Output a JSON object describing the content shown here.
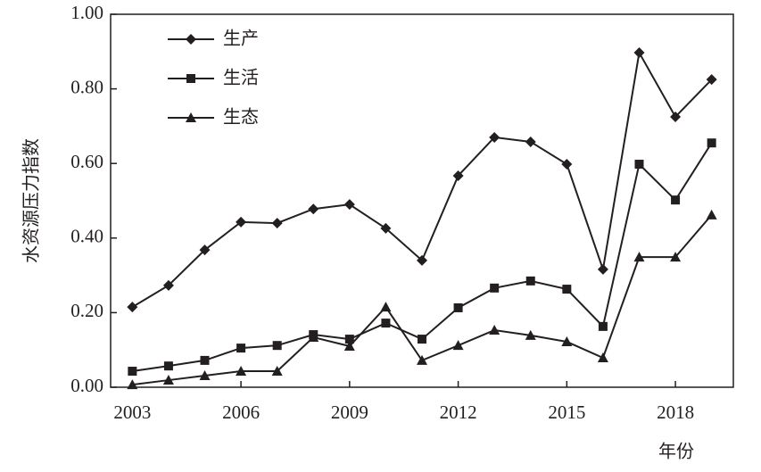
{
  "chart_data": {
    "type": "line",
    "ylabel": "水资源压力指数",
    "xlabel": "年份",
    "x": [
      2003,
      2004,
      2005,
      2006,
      2007,
      2008,
      2009,
      2010,
      2011,
      2012,
      2013,
      2014,
      2015,
      2016,
      2017,
      2018,
      2019
    ],
    "series": [
      {
        "name": "生产",
        "color": "#231f20",
        "marker": "diamond",
        "values": [
          0.215,
          0.273,
          0.368,
          0.443,
          0.44,
          0.478,
          0.49,
          0.426,
          0.34,
          0.567,
          0.67,
          0.658,
          0.598,
          0.316,
          0.897,
          0.725,
          0.825
        ]
      },
      {
        "name": "生活",
        "color": "#231f20",
        "marker": "square",
        "values": [
          0.043,
          0.057,
          0.072,
          0.105,
          0.112,
          0.141,
          0.129,
          0.172,
          0.129,
          0.213,
          0.266,
          0.285,
          0.263,
          0.163,
          0.598,
          0.502,
          0.655
        ]
      },
      {
        "name": "生态",
        "color": "#231f20",
        "marker": "triangle",
        "values": [
          0.007,
          0.019,
          0.031,
          0.043,
          0.043,
          0.134,
          0.11,
          0.215,
          0.072,
          0.112,
          0.153,
          0.139,
          0.122,
          0.079,
          0.349,
          0.349,
          0.462
        ]
      }
    ],
    "xlim": [
      2002.4,
      2019.6
    ],
    "xticks": [
      2003,
      2006,
      2009,
      2012,
      2015,
      2018
    ],
    "ylim": [
      0,
      1
    ],
    "yticks": [
      {
        "value": 0,
        "label": "0.00"
      },
      {
        "value": 0.2,
        "label": "0.20"
      },
      {
        "value": 0.4,
        "label": "0.40"
      },
      {
        "value": 0.6,
        "label": "0.60"
      },
      {
        "value": 0.8,
        "label": "0.80"
      },
      {
        "value": 1,
        "label": "1.00"
      }
    ],
    "grid": false,
    "legend": "upper left"
  }
}
